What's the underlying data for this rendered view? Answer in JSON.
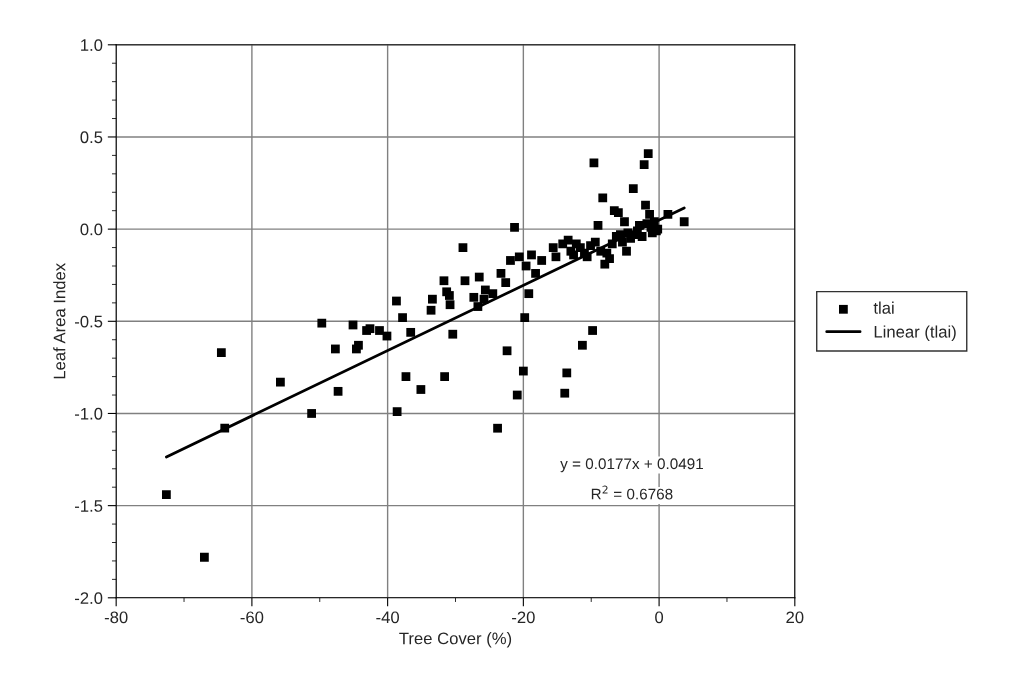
{
  "chart_data": {
    "type": "scatter",
    "xlabel": "Tree Cover (%)",
    "ylabel": "Leaf Area Index",
    "xlim": [
      -80,
      20
    ],
    "xticks": [
      -80,
      -60,
      -40,
      -20,
      0,
      20
    ],
    "ylim": [
      -2.0,
      1.0
    ],
    "yticks": [
      {
        "value": -2.0,
        "label": "-2.0"
      },
      {
        "value": -1.5,
        "label": "-1.5"
      },
      {
        "value": -1.0,
        "label": "-1.0"
      },
      {
        "value": -0.5,
        "label": "-0.5"
      },
      {
        "value": 0.0,
        "label": "0.0"
      },
      {
        "value": 0.5,
        "label": "0.5"
      },
      {
        "value": 1.0,
        "label": "1.0"
      }
    ],
    "grid": true,
    "legend": "right",
    "annotations": [
      "y = 0.0177x + 0.0491",
      "R$^{2}$ = 0.6768"
    ],
    "series": [
      {
        "name": "tlai",
        "marker": "square",
        "color": "#000000",
        "x": [
          -72.6,
          -67,
          -64.5,
          -64,
          -55.8,
          -51.2,
          -49.7,
          -47.7,
          -47.3,
          -45.1,
          -44.6,
          -44.3,
          -43.1,
          -42.6,
          -41.2,
          -40.1,
          -38.7,
          -38.6,
          -37.8,
          -37.3,
          -36.6,
          -35.1,
          -33.6,
          -33.4,
          -31.7,
          -31.6,
          -31.3,
          -30.9,
          -30.8,
          -30.4,
          -28.9,
          -28.6,
          -27.3,
          -26.5,
          -26.7,
          -25.8,
          -25.6,
          -24.5,
          -23.8,
          -23.3,
          -22.6,
          -22.4,
          -21.9,
          -21.3,
          -20.9,
          -20.6,
          -20.0,
          -19.8,
          -19.6,
          -19.2,
          -18.8,
          -18.2,
          -17.3,
          -15.6,
          -15.2,
          -14.2,
          -13.9,
          -13.6,
          -13.4,
          -13.0,
          -12.6,
          -12.2,
          -11.6,
          -11.3,
          -11.0,
          -10.6,
          -10.1,
          -9.8,
          -9.6,
          -9.4,
          -9.0,
          -8.6,
          -8.3,
          -8.0,
          -7.7,
          -7.3,
          -6.9,
          -6.6,
          -6.3,
          -6.0,
          -5.7,
          -5.4,
          -5.1,
          -4.8,
          -4.6,
          -4.2,
          -3.8,
          -3.6,
          -3.2,
          -2.9,
          -2.5,
          -2.2,
          -2.0,
          -1.8,
          -1.6,
          -1.4,
          -1.2,
          -1.0,
          -0.7,
          -0.4,
          -0.2,
          1.3,
          3.7
        ],
        "values": [
          -1.44,
          -1.78,
          -0.67,
          -1.08,
          -0.83,
          -1.0,
          -0.51,
          -0.65,
          -0.88,
          -0.52,
          -0.65,
          -0.63,
          -0.55,
          -0.54,
          -0.55,
          -0.58,
          -0.39,
          -0.99,
          -0.48,
          -0.8,
          -0.56,
          -0.87,
          -0.44,
          -0.38,
          -0.28,
          -0.8,
          -0.34,
          -0.36,
          -0.41,
          -0.57,
          -0.1,
          -0.28,
          -0.37,
          -0.26,
          -0.42,
          -0.38,
          -0.33,
          -0.35,
          -1.08,
          -0.24,
          -0.29,
          -0.66,
          -0.17,
          0.01,
          -0.9,
          -0.15,
          -0.77,
          -0.48,
          -0.2,
          -0.35,
          -0.14,
          -0.24,
          -0.17,
          -0.1,
          -0.15,
          -0.08,
          -0.89,
          -0.78,
          -0.06,
          -0.12,
          -0.14,
          -0.08,
          -0.1,
          -0.63,
          -0.13,
          -0.15,
          -0.09,
          -0.55,
          0.36,
          -0.07,
          0.02,
          -0.12,
          0.17,
          -0.19,
          -0.13,
          -0.16,
          -0.08,
          0.1,
          -0.04,
          0.09,
          -0.03,
          -0.07,
          0.04,
          -0.12,
          -0.02,
          -0.05,
          0.22,
          -0.03,
          -0.01,
          0.02,
          -0.04,
          0.35,
          0.13,
          0.03,
          0.41,
          0.08,
          0.01,
          -0.02,
          0.04,
          -0.01,
          0.0,
          0.08,
          0.04
        ]
      },
      {
        "name": "Linear (tlai)",
        "type": "line",
        "line_style": "solid",
        "color": "#000000",
        "x": [
          -72.6,
          3.7
        ],
        "values": [
          -1.236,
          0.115
        ]
      }
    ]
  }
}
